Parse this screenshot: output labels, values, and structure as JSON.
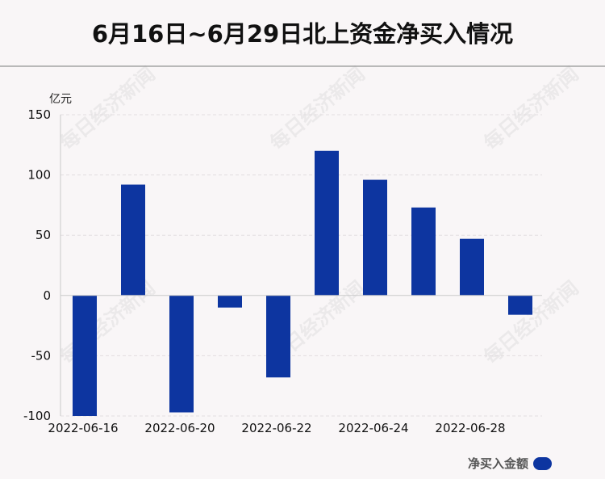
{
  "title": "6月16日~6月29日北上资金净买入情况",
  "watermark": "每日经济新闻",
  "colors": {
    "bar": "#0d35a0",
    "grid": "#e2dde0",
    "axis": "#c9c9c9",
    "background": "#f9f6f7"
  },
  "chart_data": {
    "type": "bar",
    "unit_label": "亿元",
    "categories": [
      "2022-06-16",
      "2022-06-17",
      "2022-06-20",
      "2022-06-21",
      "2022-06-22",
      "2022-06-23",
      "2022-06-24",
      "2022-06-27",
      "2022-06-28",
      "2022-06-29"
    ],
    "x_tick_labels": [
      "2022-06-16",
      "2022-06-20",
      "2022-06-22",
      "2022-06-24",
      "2022-06-28"
    ],
    "y_ticks": [
      150,
      100,
      50,
      0,
      -50,
      -100
    ],
    "ylim": [
      -100,
      150
    ],
    "series": [
      {
        "name": "净买入金额",
        "values": [
          -100,
          92,
          -97,
          -10,
          -68,
          120,
          96,
          73,
          47,
          -16
        ]
      }
    ],
    "grid": true,
    "legend_position": "bottom-right"
  }
}
